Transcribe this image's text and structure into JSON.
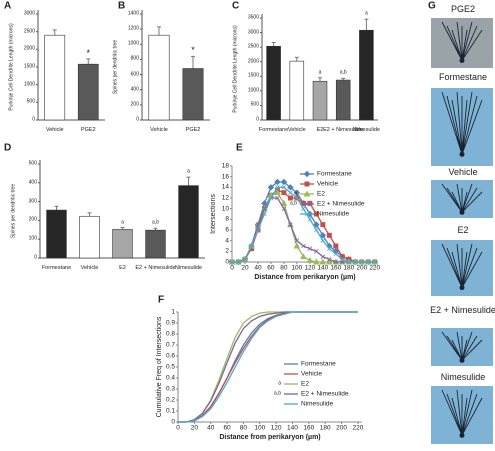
{
  "chart_data": [
    {
      "type": "bar",
      "label": "A",
      "y_label": "Purkinje Cell Dendrite Length (microns)",
      "categories": [
        "Vehicle",
        "PGE2"
      ],
      "values": [
        2400,
        1580
      ],
      "errors": [
        150,
        150
      ],
      "colors": [
        "#ffffff",
        "#595959"
      ],
      "bar_labels": [
        null,
        "*"
      ],
      "ylim": [
        0,
        3000
      ],
      "yticks": [
        0,
        500,
        1000,
        1500,
        2000,
        2500,
        3000
      ]
    },
    {
      "type": "bar",
      "label": "B",
      "y_label": "Spines per dendritic tree",
      "categories": [
        "Vehicle",
        "PGE2"
      ],
      "values": [
        1120,
        680
      ],
      "errors": [
        110,
        160
      ],
      "colors": [
        "#ffffff",
        "#595959"
      ],
      "bar_labels": [
        null,
        "*"
      ],
      "ylim": [
        0,
        1400
      ],
      "yticks": [
        0,
        200,
        400,
        600,
        800,
        1000,
        1200,
        1400
      ]
    },
    {
      "type": "bar",
      "label": "C",
      "y_label": "Purkinje Cell Dendrite Length (microns)",
      "categories": [
        "Formestane",
        "Vehicle",
        "E2",
        "E2 + Nimesulide",
        "Nimesulide"
      ],
      "values": [
        2530,
        2020,
        1330,
        1370,
        3080
      ],
      "errors": [
        130,
        130,
        120,
        60,
        380
      ],
      "colors": [
        "#262626",
        "#ffffff",
        "#a6a6a6",
        "#595959",
        "#262626"
      ],
      "bar_labels": [
        null,
        null,
        "a",
        "a,b",
        "a"
      ],
      "ylim": [
        0,
        3500
      ],
      "yticks": [
        0,
        500,
        1000,
        1500,
        2000,
        2500,
        3000,
        3500
      ]
    },
    {
      "type": "bar",
      "label": "D",
      "y_label": "Spines per dendritic tree",
      "categories": [
        "Formestane",
        "Vehicle",
        "E2",
        "E2 + Nimesulide",
        "Nimesulide"
      ],
      "values": [
        255,
        222,
        152,
        148,
        385
      ],
      "errors": [
        20,
        18,
        10,
        10,
        45
      ],
      "colors": [
        "#262626",
        "#ffffff",
        "#a6a6a6",
        "#595959",
        "#262626"
      ],
      "bar_labels": [
        null,
        null,
        "a",
        "a,b",
        "a"
      ],
      "ylim": [
        0,
        500
      ],
      "yticks": [
        0,
        100,
        200,
        300,
        400,
        500
      ]
    },
    {
      "type": "line",
      "label": "E",
      "x_label": "Distance from perikaryon (µm)",
      "y_label": "Intersections",
      "markers": true,
      "x": [
        0,
        10,
        20,
        30,
        40,
        50,
        60,
        70,
        80,
        90,
        100,
        110,
        120,
        130,
        140,
        150,
        160,
        170,
        180,
        190,
        200,
        210,
        220
      ],
      "series": [
        {
          "name": "Formestane",
          "color": "#4f81bd",
          "marker": "diamond",
          "values": [
            0,
            0,
            0.5,
            3,
            7,
            11,
            14,
            15,
            15,
            14,
            13,
            11,
            9,
            7,
            5,
            3,
            2,
            1,
            0.5,
            0,
            0,
            0,
            0
          ]
        },
        {
          "name": "Vehicle",
          "color": "#c0504d",
          "marker": "square",
          "values": [
            0,
            0,
            0.5,
            2.5,
            6,
            10,
            12.5,
            13.5,
            13,
            12,
            12,
            11,
            11,
            9,
            7,
            5,
            3,
            1,
            0.5,
            0,
            0,
            0,
            0
          ]
        },
        {
          "name": "E2",
          "color": "#9bbb59",
          "marker": "triangle",
          "values": [
            0,
            0,
            0.5,
            3,
            7,
            10,
            12.5,
            13,
            11,
            7,
            3,
            1,
            0.3,
            0,
            0,
            0,
            0,
            0,
            0,
            0,
            0,
            0,
            0
          ]
        },
        {
          "name": "E2 + Nimesulide",
          "color": "#8064a2",
          "marker": "x",
          "values": [
            0,
            0,
            0.5,
            3,
            7,
            10,
            12,
            12,
            10,
            7,
            4,
            3,
            2.5,
            2,
            1,
            0.5,
            0,
            0,
            0,
            0,
            0,
            0,
            0
          ]
        },
        {
          "name": "Nimesulide",
          "color": "#4bacc6",
          "marker": "x",
          "values": [
            0,
            0,
            0.5,
            3,
            6,
            9,
            12,
            14,
            14,
            13,
            12,
            10,
            8,
            6,
            4,
            2.5,
            1.5,
            0.5,
            0,
            0,
            0,
            0,
            0
          ]
        }
      ],
      "legend_notes": [
        null,
        null,
        "a",
        "a,b",
        null
      ],
      "xlim": [
        0,
        225
      ],
      "xticks": [
        0,
        20,
        40,
        60,
        80,
        100,
        120,
        140,
        160,
        180,
        200,
        220
      ],
      "ylim": [
        0,
        18
      ],
      "yticks": [
        0,
        2,
        4,
        6,
        8,
        10,
        12,
        14,
        16,
        18
      ]
    },
    {
      "type": "line",
      "label": "F",
      "x_label": "Distance from perikaryon (µm)",
      "y_label": "Cumulative Freq of Intersections",
      "markers": false,
      "x": [
        0,
        10,
        20,
        30,
        40,
        50,
        60,
        70,
        80,
        90,
        100,
        110,
        120,
        130,
        140,
        150,
        160,
        170,
        180,
        190,
        200,
        210,
        220
      ],
      "series": [
        {
          "name": "Formestane",
          "color": "#4f81bd",
          "values": [
            0,
            0,
            0.01,
            0.06,
            0.14,
            0.26,
            0.4,
            0.56,
            0.7,
            0.81,
            0.89,
            0.94,
            0.97,
            0.99,
            1,
            1,
            1,
            1,
            1,
            1,
            1,
            1,
            1
          ]
        },
        {
          "name": "Vehicle",
          "color": "#c0504d",
          "values": [
            0,
            0,
            0.01,
            0.06,
            0.14,
            0.26,
            0.4,
            0.54,
            0.67,
            0.78,
            0.87,
            0.93,
            0.97,
            0.99,
            1,
            1,
            1,
            1,
            1,
            1,
            1,
            1,
            1
          ]
        },
        {
          "name": "E2",
          "color": "#9bbb59",
          "values": [
            0,
            0,
            0.02,
            0.08,
            0.2,
            0.38,
            0.58,
            0.77,
            0.9,
            0.96,
            0.99,
            1,
            1,
            1,
            1,
            1,
            1,
            1,
            1,
            1,
            1,
            1,
            1
          ]
        },
        {
          "name": "E2 + Nimesulide",
          "color": "#8064a2",
          "values": [
            0,
            0,
            0.02,
            0.08,
            0.19,
            0.35,
            0.54,
            0.72,
            0.85,
            0.92,
            0.96,
            0.98,
            0.99,
            1,
            1,
            1,
            1,
            1,
            1,
            1,
            1,
            1,
            1
          ]
        },
        {
          "name": "Nimesulide",
          "color": "#4bacc6",
          "values": [
            0,
            0,
            0.01,
            0.05,
            0.12,
            0.23,
            0.36,
            0.5,
            0.64,
            0.76,
            0.86,
            0.92,
            0.96,
            0.98,
            1,
            1,
            1,
            1,
            1,
            1,
            1,
            1,
            1
          ]
        }
      ],
      "legend_notes": [
        null,
        null,
        "a",
        "a,b",
        null
      ],
      "xlim": [
        0,
        225
      ],
      "xticks": [
        0,
        20,
        40,
        60,
        80,
        100,
        120,
        140,
        160,
        180,
        200,
        220
      ],
      "ylim": [
        0,
        1
      ],
      "yticks": [
        0,
        0.1,
        0.2,
        0.3,
        0.4,
        0.5,
        0.6,
        0.7,
        0.8,
        0.9,
        1
      ]
    }
  ],
  "image_panel": {
    "label": "G",
    "captions": [
      "PGE2",
      "Formestane",
      "Vehicle",
      "E2",
      "E2 + Nimesulide",
      "Nimesulide"
    ]
  }
}
